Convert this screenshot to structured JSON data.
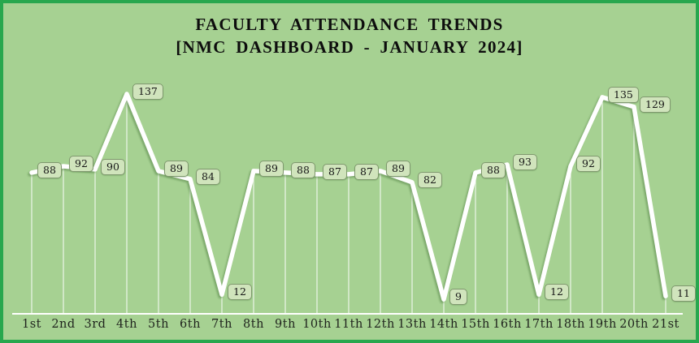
{
  "title": {
    "line1": "FACULTY ATTENDANCE TRENDS",
    "line2": "[NMC DASHBOARD - JANUARY 2024]"
  },
  "chart_data": {
    "type": "line",
    "title": "FACULTY ATTENDANCE TRENDS [NMC DASHBOARD - JANUARY 2024]",
    "categories": [
      "1st",
      "2nd",
      "3rd",
      "4th",
      "5th",
      "6th",
      "7th",
      "8th",
      "9th",
      "10th",
      "11th",
      "12th",
      "13th",
      "14th",
      "15th",
      "16th",
      "17th",
      "18th",
      "19th",
      "20th",
      "21st"
    ],
    "values": [
      88,
      92,
      90,
      137,
      89,
      84,
      12,
      89,
      88,
      87,
      87,
      89,
      82,
      9,
      88,
      93,
      12,
      92,
      135,
      129,
      11
    ],
    "xlabel": "",
    "ylabel": "",
    "ylim": [
      0,
      140
    ],
    "grid": false,
    "legend": false,
    "data_labels": true,
    "drop_lines": true
  },
  "colors": {
    "background": "#a6d192",
    "frame_border": "#28a74e",
    "line": "#ffffff",
    "label_chip_fill": "#d0e4bc",
    "label_chip_border": "#7f986e",
    "title_text": "#0d0d0d"
  }
}
